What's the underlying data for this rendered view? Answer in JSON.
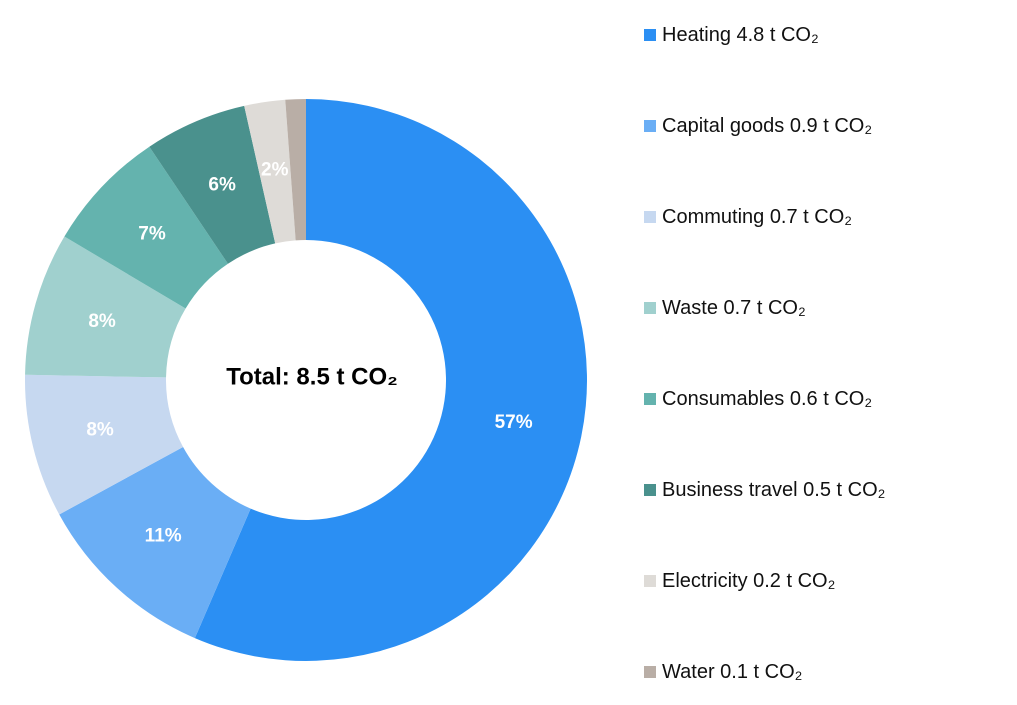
{
  "chart_data": {
    "type": "pie",
    "donut": true,
    "center_label": "Total: 8.5 t CO₂",
    "unit": "t CO₂",
    "legend_position": "right",
    "series": [
      {
        "name": "Heating",
        "value": 4.8,
        "label": "57%",
        "legend": "Heating 4.8 t CO₂",
        "color": "#2b8ff3"
      },
      {
        "name": "Capital goods",
        "value": 0.9,
        "label": "11%",
        "legend": "Capital goods 0.9 t CO₂",
        "color": "#6aaef5"
      },
      {
        "name": "Commuting",
        "value": 0.7,
        "label": "8%",
        "legend": "Commuting 0.7 t CO₂",
        "color": "#c6d8f0"
      },
      {
        "name": "Waste",
        "value": 0.7,
        "label": "8%",
        "legend": "Waste 0.7 t CO₂",
        "color": "#a0d0ce"
      },
      {
        "name": "Consumables",
        "value": 0.6,
        "label": "7%",
        "legend": "Consumables 0.6 t CO₂",
        "color": "#64b3ae"
      },
      {
        "name": "Business travel",
        "value": 0.5,
        "label": "6%",
        "legend": "Business travel 0.5 t CO₂",
        "color": "#4a918d"
      },
      {
        "name": "Electricity",
        "value": 0.2,
        "label": "2%",
        "legend": "Electricity 0.2 t CO₂",
        "color": "#dedbd7"
      },
      {
        "name": "Water",
        "value": 0.1,
        "label": "",
        "legend": "Water 0.1 t CO₂",
        "color": "#b9aea6"
      }
    ]
  }
}
